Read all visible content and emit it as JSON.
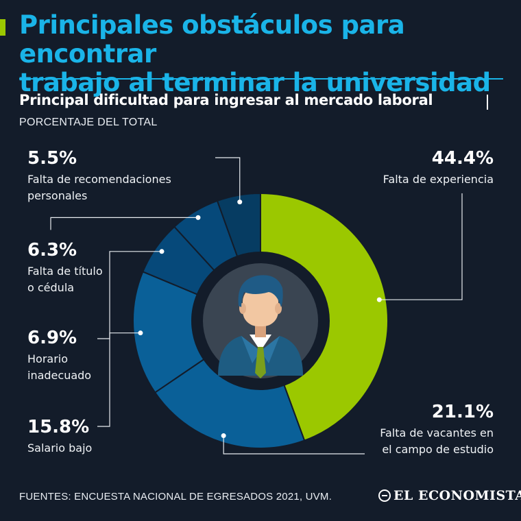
{
  "header": {
    "title_line1": "Principales obstáculos para encontrar",
    "title_line2": "trabajo al terminar la universidad",
    "subtitle": "Principal dificultad para ingresar al mercado laboral",
    "caption": "PORCENTAJE DEL TOTAL"
  },
  "colors": {
    "background": "#131c2a",
    "title": "#1ab4e8",
    "accent": "#9bc800",
    "slice_green": "#9bc800",
    "slice_blue": "#0a6098",
    "slice_mid": "#06497a",
    "slice_dark": "#063c62"
  },
  "chart_data": {
    "type": "pie",
    "style": "donut",
    "title": "Principal dificultad para ingresar al mercado laboral",
    "unit": "%",
    "categories": [
      "Falta de experiencia",
      "Falta de vacantes en el campo de estudio",
      "Salario bajo",
      "Horario inadecuado",
      "Falta de título o cédula",
      "Falta de recomendaciones personales"
    ],
    "values": [
      44.4,
      21.1,
      15.8,
      6.9,
      6.3,
      5.5
    ],
    "value_labels": [
      "44.4%",
      "21.1%",
      "15.8%",
      "6.9%",
      "6.3%",
      "5.5%"
    ],
    "label_lines": [
      [
        "Falta de experiencia"
      ],
      [
        "Falta de vacantes en",
        "el campo de estudio"
      ],
      [
        "Salario bajo"
      ],
      [
        "Horario",
        "inadecuado"
      ],
      [
        "Falta de título",
        "o cédula"
      ],
      [
        "Falta de recomendaciones",
        "personales"
      ]
    ],
    "slice_colors": [
      "#9bc800",
      "#0a6098",
      "#0a6098",
      "#06497a",
      "#06497a",
      "#063c62"
    ],
    "center_icon": "businessman-icon"
  },
  "footer": {
    "source": "FUENTES: ENCUESTA NACIONAL DE EGRESADOS 2021, UVM.",
    "brand": "EL ECONOMISTA"
  }
}
